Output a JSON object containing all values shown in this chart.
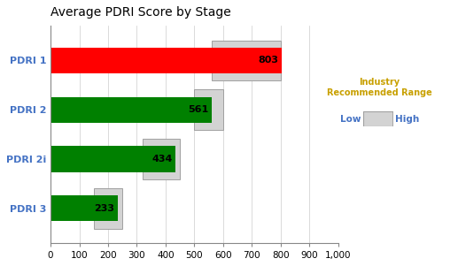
{
  "title": "Average PDRI Score by Stage",
  "categories": [
    "PDRI 1",
    "PDRI 2",
    "PDRI 2i",
    "PDRI 3"
  ],
  "values": [
    803,
    561,
    434,
    233
  ],
  "bar_colors": [
    "#ff0000",
    "#008000",
    "#008000",
    "#008000"
  ],
  "industry_range_low": [
    560,
    500,
    320,
    150
  ],
  "industry_range_high": [
    800,
    600,
    450,
    250
  ],
  "xlim": [
    0,
    1000
  ],
  "xticks": [
    0,
    100,
    200,
    300,
    400,
    500,
    600,
    700,
    800,
    900,
    1000
  ],
  "xtick_labels": [
    "0",
    "100",
    "200",
    "300",
    "400",
    "500",
    "600",
    "700",
    "800",
    "900",
    "1,000"
  ],
  "title_fontsize": 10,
  "label_color": "#4472c4",
  "value_fontsize": 8,
  "bar_height": 0.52,
  "range_color": "#d3d3d3",
  "range_edge_color": "#a0a0a0",
  "legend_title": "Industry\nRecommended Range",
  "legend_low": "Low",
  "legend_high": "High",
  "legend_title_color": "#c8a000",
  "background_color": "#ffffff"
}
